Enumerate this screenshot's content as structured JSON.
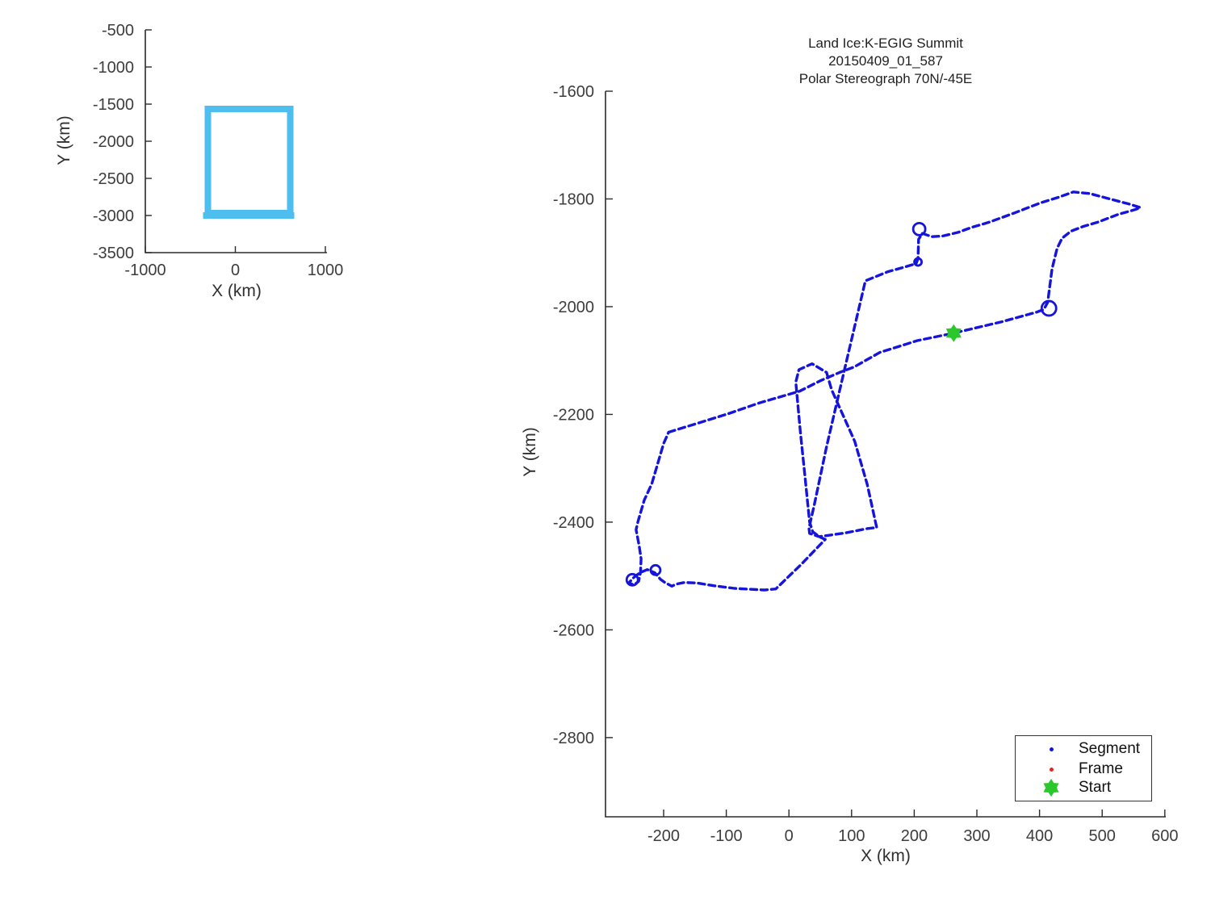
{
  "figure": {
    "background": "#ffffff",
    "spine_color": "#2b2b2b",
    "tick_label_color": "#3d3d3d"
  },
  "chart_data": [
    {
      "id": "overview",
      "type": "line",
      "title": "",
      "xlabel": "X (km)",
      "ylabel": "Y (km)",
      "xlim": [
        -1000,
        1018
      ],
      "ylim": [
        -3500,
        -500
      ],
      "xticks": [
        -1000,
        0,
        1000
      ],
      "yticks": [
        -500,
        -1000,
        -1500,
        -2000,
        -2500,
        -3000,
        -3500
      ],
      "grid": false,
      "rect": {
        "x0": -305,
        "x1": 610,
        "y0": -2967,
        "y1": -1565,
        "color": "#4DBEEE",
        "stroke_px": 8,
        "note": "extent box of the flight-track plot"
      }
    },
    {
      "id": "flight",
      "type": "line",
      "title_lines": [
        "Land Ice:K-EGIG Summit",
        "20150409_01_587",
        "Polar Stereograph 70N/-45E"
      ],
      "xlabel": "X (km)",
      "ylabel": "Y (km)",
      "xlim": [
        -292.8,
        602.8
      ],
      "ylim": [
        -2947,
        -1600
      ],
      "xticks": [
        -200,
        -100,
        0,
        100,
        200,
        300,
        400,
        500,
        600
      ],
      "yticks": [
        -1600,
        -1800,
        -2000,
        -2200,
        -2400,
        -2600,
        -2800
      ],
      "grid": false,
      "line_color": "#1414dd",
      "route": [
        [
          -192,
          -2233
        ],
        [
          -100,
          -2200
        ],
        [
          -48,
          -2179
        ],
        [
          17,
          -2157
        ],
        [
          51,
          -2137
        ],
        [
          81,
          -2122
        ],
        [
          104,
          -2112
        ],
        [
          145,
          -2085
        ],
        [
          205,
          -2063
        ],
        [
          263,
          -2049
        ],
        [
          340,
          -2028
        ],
        [
          396,
          -2010
        ],
        [
          407,
          -2005
        ],
        [
          413,
          -1992
        ],
        [
          420,
          -1930
        ],
        [
          428,
          -1892
        ],
        [
          436,
          -1873
        ],
        [
          450,
          -1860
        ],
        [
          470,
          -1851
        ],
        [
          493,
          -1843
        ],
        [
          525,
          -1829
        ],
        [
          552,
          -1820
        ],
        [
          561,
          -1816
        ],
        [
          545,
          -1810
        ],
        [
          515,
          -1801
        ],
        [
          480,
          -1790
        ],
        [
          454,
          -1787
        ],
        [
          430,
          -1797
        ],
        [
          400,
          -1808
        ],
        [
          360,
          -1826
        ],
        [
          320,
          -1843
        ],
        [
          291,
          -1853
        ],
        [
          270,
          -1862
        ],
        [
          245,
          -1869
        ],
        [
          228,
          -1870
        ],
        [
          213,
          -1864
        ],
        [
          207,
          -1875
        ],
        [
          206,
          -1911
        ],
        [
          203,
          -1920
        ],
        [
          180,
          -1928
        ],
        [
          158,
          -1935
        ],
        [
          122,
          -1952
        ],
        [
          90,
          -2110
        ],
        [
          60,
          -2260
        ],
        [
          40,
          -2370
        ],
        [
          32,
          -2411
        ],
        [
          33,
          -2421
        ],
        [
          48,
          -2427
        ],
        [
          90,
          -2420
        ],
        [
          125,
          -2412
        ],
        [
          140,
          -2410
        ],
        [
          125,
          -2330
        ],
        [
          105,
          -2250
        ],
        [
          68,
          -2154
        ],
        [
          60,
          -2122
        ],
        [
          37,
          -2106
        ],
        [
          16,
          -2117
        ],
        [
          11,
          -2140
        ],
        [
          18,
          -2230
        ],
        [
          26,
          -2320
        ],
        [
          33,
          -2400
        ],
        [
          38,
          -2418
        ],
        [
          50,
          -2428
        ],
        [
          58,
          -2432
        ],
        [
          20,
          -2478
        ],
        [
          -21,
          -2524
        ],
        [
          -39,
          -2526
        ],
        [
          -87,
          -2523
        ],
        [
          -120,
          -2518
        ],
        [
          -147,
          -2513
        ],
        [
          -167,
          -2512
        ],
        [
          -180,
          -2515
        ],
        [
          -187,
          -2519
        ],
        [
          -198,
          -2512
        ],
        [
          -205,
          -2506
        ],
        [
          -214,
          -2494
        ],
        [
          -226,
          -2488
        ],
        [
          -238,
          -2494
        ],
        [
          -248,
          -2503
        ],
        [
          -255,
          -2512
        ],
        [
          -248,
          -2517
        ],
        [
          -240,
          -2510
        ],
        [
          -237,
          -2494
        ],
        [
          -236,
          -2468
        ],
        [
          -239,
          -2444
        ],
        [
          -244,
          -2414
        ],
        [
          -241,
          -2399
        ],
        [
          -231,
          -2359
        ],
        [
          -219,
          -2329
        ],
        [
          -200,
          -2254
        ],
        [
          -192,
          -2233
        ]
      ],
      "loops": [
        {
          "cx": 415,
          "cy": -2003,
          "r": 9
        },
        {
          "cx": 208,
          "cy": -1856,
          "r": 7.5
        },
        {
          "cx": 206,
          "cy": -1917,
          "r": 4.5
        },
        {
          "cx": -250,
          "cy": -2507,
          "r": 7
        },
        {
          "cx": -213,
          "cy": -2489,
          "r": 6
        }
      ],
      "start": {
        "x": 263,
        "y": -2049,
        "color": "#2bc82b"
      },
      "legend": {
        "position": "lower-right",
        "items": [
          {
            "label": "Segment",
            "marker": "dot",
            "color": "#1414dd"
          },
          {
            "label": "Frame",
            "marker": "dot",
            "color": "#e82222"
          },
          {
            "label": "Start",
            "marker": "hexagram",
            "color": "#2bc82b"
          }
        ]
      }
    }
  ]
}
